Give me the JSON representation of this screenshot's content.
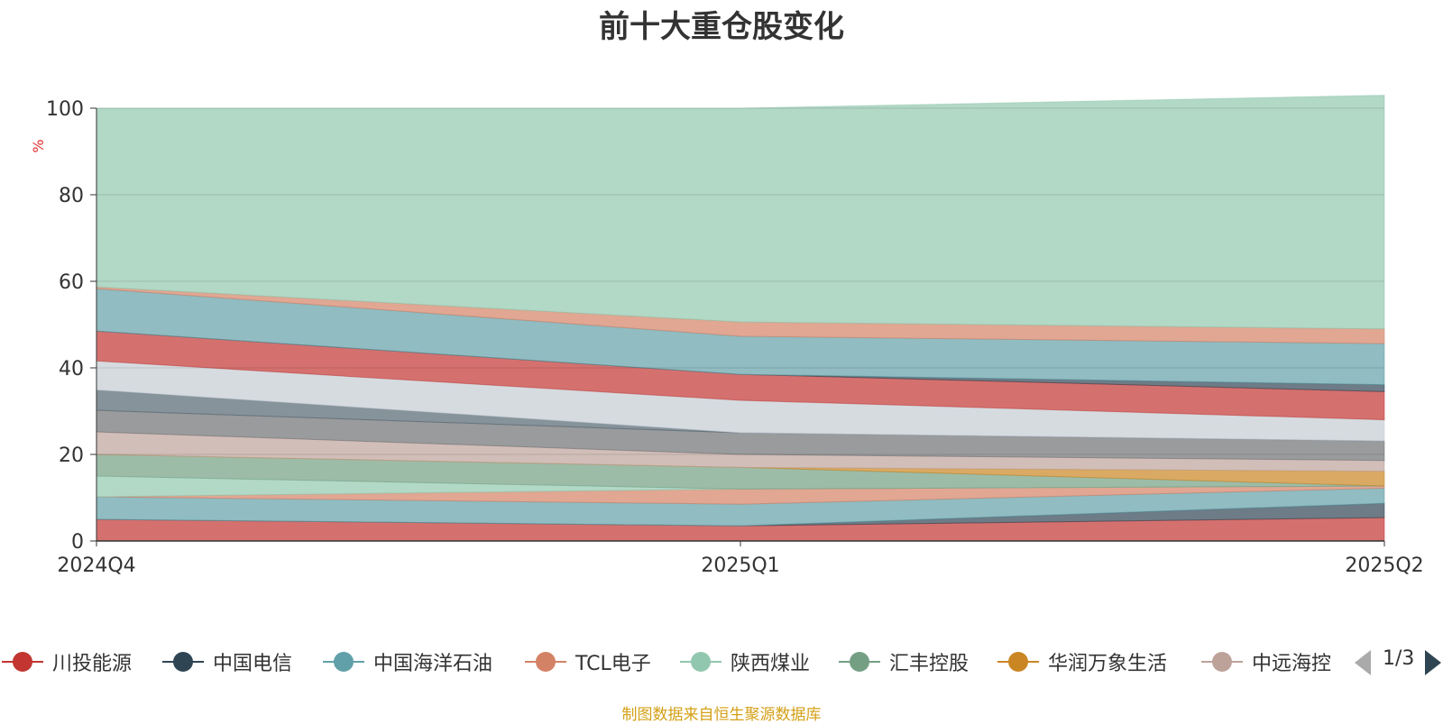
{
  "chart_data": {
    "type": "area",
    "title": "前十大重仓股变化",
    "ylabel": "%",
    "ylim": [
      0,
      100
    ],
    "y_ticks": [
      0,
      20,
      40,
      60,
      80,
      100
    ],
    "x": [
      "2024Q4",
      "2025Q1",
      "2025Q2"
    ],
    "grid": true,
    "stacked": true,
    "legend_position": "bottom",
    "series": [
      {
        "name": "川投能源",
        "color": "#c23531",
        "values": [
          5.0,
          3.5,
          5.4
        ]
      },
      {
        "name": "中国电信",
        "color": "#2f4554",
        "values": [
          0.0,
          0.0,
          3.3
        ]
      },
      {
        "name": "中国海洋石油",
        "color": "#61a0a8",
        "values": [
          5.2,
          5.0,
          3.5
        ]
      },
      {
        "name": "TCL电子",
        "color": "#d48265",
        "values": [
          0.0,
          3.5,
          0.5
        ]
      },
      {
        "name": "陕西煤业",
        "color": "#91c7ae",
        "values": [
          4.8,
          0.0,
          0.0
        ]
      },
      {
        "name": "汇丰控股",
        "color": "#749f83",
        "values": [
          5.0,
          5.0,
          0.0
        ]
      },
      {
        "name": "华润万象生活",
        "color": "#ca8622",
        "values": [
          0.0,
          0.0,
          3.4
        ]
      },
      {
        "name": "中远海控",
        "color": "#bda29a",
        "values": [
          5.2,
          3.0,
          2.5
        ]
      },
      {
        "name": "",
        "color": "#6e7074",
        "values": [
          5.0,
          5.0,
          4.5
        ]
      },
      {
        "name": "",
        "color": "#546570",
        "values": [
          4.7,
          0.0,
          0.0
        ]
      },
      {
        "name": "",
        "color": "#c4ccd3",
        "values": [
          6.7,
          7.5,
          4.9
        ]
      },
      {
        "name": "",
        "color": "#c23531",
        "values": [
          6.9,
          6.0,
          6.5
        ]
      },
      {
        "name": "",
        "color": "#2f4554",
        "values": [
          0.0,
          0.0,
          1.6
        ]
      },
      {
        "name": "",
        "color": "#61a0a8",
        "values": [
          9.8,
          8.8,
          9.5
        ]
      },
      {
        "name": "",
        "color": "#d48265",
        "values": [
          0.4,
          3.3,
          3.4
        ]
      },
      {
        "name": "",
        "color": "#91c7ae",
        "values": [
          41.3,
          49.4,
          54.0
        ]
      }
    ]
  },
  "legend": {
    "items": [
      "川投能源",
      "中国电信",
      "中国海洋石油",
      "TCL电子",
      "陕西煤业",
      "汇丰控股",
      "华润万象生活",
      "中远海控"
    ],
    "pager": "1/3"
  },
  "footer": "制图数据来自恒生聚源数据库"
}
